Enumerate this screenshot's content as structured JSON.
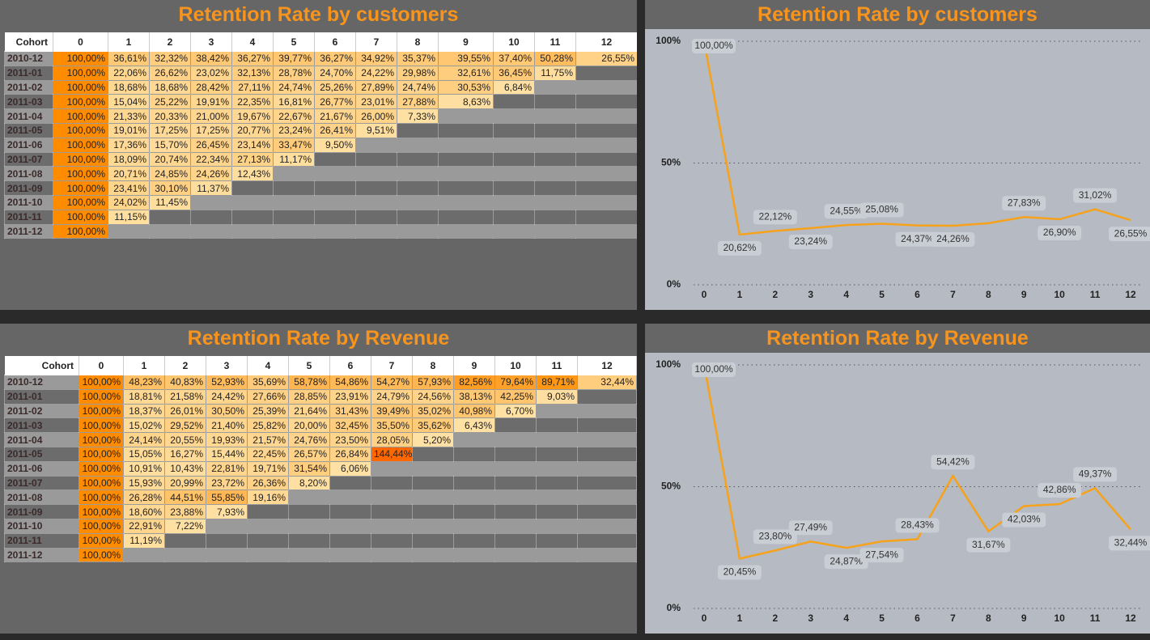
{
  "tables": [
    {
      "title": "Retention Rate by customers",
      "header": [
        "Cohort",
        "0",
        "1",
        "2",
        "3",
        "4",
        "5",
        "6",
        "7",
        "8",
        "9",
        "10",
        "11",
        "12"
      ],
      "rows": [
        [
          "2010-12",
          "100,00%",
          "36,61%",
          "32,32%",
          "38,42%",
          "36,27%",
          "39,77%",
          "36,27%",
          "34,92%",
          "35,37%",
          "39,55%",
          "37,40%",
          "50,28%",
          "26,55%"
        ],
        [
          "2011-01",
          "100,00%",
          "22,06%",
          "26,62%",
          "23,02%",
          "32,13%",
          "28,78%",
          "24,70%",
          "24,22%",
          "29,98%",
          "32,61%",
          "36,45%",
          "11,75%"
        ],
        [
          "2011-02",
          "100,00%",
          "18,68%",
          "18,68%",
          "28,42%",
          "27,11%",
          "24,74%",
          "25,26%",
          "27,89%",
          "24,74%",
          "30,53%",
          "6,84%"
        ],
        [
          "2011-03",
          "100,00%",
          "15,04%",
          "25,22%",
          "19,91%",
          "22,35%",
          "16,81%",
          "26,77%",
          "23,01%",
          "27,88%",
          "8,63%"
        ],
        [
          "2011-04",
          "100,00%",
          "21,33%",
          "20,33%",
          "21,00%",
          "19,67%",
          "22,67%",
          "21,67%",
          "26,00%",
          "7,33%"
        ],
        [
          "2011-05",
          "100,00%",
          "19,01%",
          "17,25%",
          "17,25%",
          "20,77%",
          "23,24%",
          "26,41%",
          "9,51%"
        ],
        [
          "2011-06",
          "100,00%",
          "17,36%",
          "15,70%",
          "26,45%",
          "23,14%",
          "33,47%",
          "9,50%"
        ],
        [
          "2011-07",
          "100,00%",
          "18,09%",
          "20,74%",
          "22,34%",
          "27,13%",
          "11,17%"
        ],
        [
          "2011-08",
          "100,00%",
          "20,71%",
          "24,85%",
          "24,26%",
          "12,43%"
        ],
        [
          "2011-09",
          "100,00%",
          "23,41%",
          "30,10%",
          "11,37%"
        ],
        [
          "2011-10",
          "100,00%",
          "24,02%",
          "11,45%"
        ],
        [
          "2011-11",
          "100,00%",
          "11,15%"
        ],
        [
          "2011-12",
          "100,00%"
        ]
      ]
    },
    {
      "title": "Retention Rate by Revenue",
      "header": [
        "Cohort",
        "0",
        "1",
        "2",
        "3",
        "4",
        "5",
        "6",
        "7",
        "8",
        "9",
        "10",
        "11",
        "12"
      ],
      "rows": [
        [
          "2010-12",
          "100,00%",
          "48,23%",
          "40,83%",
          "52,93%",
          "35,69%",
          "58,78%",
          "54,86%",
          "54,27%",
          "57,93%",
          "82,56%",
          "79,64%",
          "89,71%",
          "32,44%"
        ],
        [
          "2011-01",
          "100,00%",
          "18,81%",
          "21,58%",
          "24,42%",
          "27,66%",
          "28,85%",
          "23,91%",
          "24,79%",
          "24,56%",
          "38,13%",
          "42,25%",
          "9,03%"
        ],
        [
          "2011-02",
          "100,00%",
          "18,37%",
          "26,01%",
          "30,50%",
          "25,39%",
          "21,64%",
          "31,43%",
          "39,49%",
          "35,02%",
          "40,98%",
          "6,70%"
        ],
        [
          "2011-03",
          "100,00%",
          "15,02%",
          "29,52%",
          "21,40%",
          "25,82%",
          "20,00%",
          "32,45%",
          "35,50%",
          "35,62%",
          "6,43%"
        ],
        [
          "2011-04",
          "100,00%",
          "24,14%",
          "20,55%",
          "19,93%",
          "21,57%",
          "24,76%",
          "23,50%",
          "28,05%",
          "5,20%"
        ],
        [
          "2011-05",
          "100,00%",
          "15,05%",
          "16,27%",
          "15,44%",
          "22,45%",
          "26,57%",
          "26,84%",
          "144,44%"
        ],
        [
          "2011-06",
          "100,00%",
          "10,91%",
          "10,43%",
          "22,81%",
          "19,71%",
          "31,54%",
          "6,06%"
        ],
        [
          "2011-07",
          "100,00%",
          "15,93%",
          "20,99%",
          "23,72%",
          "26,36%",
          "8,20%"
        ],
        [
          "2011-08",
          "100,00%",
          "26,28%",
          "44,51%",
          "55,85%",
          "19,16%"
        ],
        [
          "2011-09",
          "100,00%",
          "18,60%",
          "23,88%",
          "7,93%"
        ],
        [
          "2011-10",
          "100,00%",
          "22,91%",
          "7,22%"
        ],
        [
          "2011-11",
          "100,00%",
          "11,19%"
        ],
        [
          "2011-12",
          "100,00%"
        ]
      ]
    }
  ],
  "chart_data": [
    {
      "type": "line",
      "title": "Retention Rate by customers",
      "color": "#f7a21b",
      "x": [
        0,
        1,
        2,
        3,
        4,
        5,
        6,
        7,
        8,
        9,
        10,
        11,
        12
      ],
      "values": [
        100,
        20.62,
        22.12,
        23.24,
        24.55,
        25.08,
        24.37,
        24.26,
        25.3,
        27.83,
        26.9,
        31.02,
        26.55
      ],
      "value_labels": [
        "100,00%",
        "20,62%",
        "22,12%",
        "23,24%",
        "24,55%",
        "25,08%",
        "24,37%",
        "24,26%",
        null,
        "27,83%",
        "26,90%",
        "31,02%",
        "26,55%"
      ],
      "xlim": [
        0,
        12
      ],
      "xticks": [
        0,
        1,
        2,
        3,
        4,
        5,
        6,
        7,
        8,
        9,
        10,
        11,
        12
      ],
      "ylim": [
        0,
        100
      ],
      "yticks": [
        {
          "value": 0,
          "label": "0%"
        },
        {
          "value": 50,
          "label": "50%"
        },
        {
          "value": 100,
          "label": "100%"
        }
      ],
      "grid": true
    },
    {
      "type": "line",
      "title": "Retention Rate by Revenue",
      "color": "#f7a21b",
      "x": [
        0,
        1,
        2,
        3,
        4,
        5,
        6,
        7,
        8,
        9,
        10,
        11,
        12
      ],
      "values": [
        100,
        20.45,
        23.8,
        27.49,
        24.87,
        27.54,
        28.43,
        54.42,
        31.67,
        42.03,
        42.86,
        49.37,
        32.44
      ],
      "value_labels": [
        "100,00%",
        "20,45%",
        "23,80%",
        "27,49%",
        "24,87%",
        "27,54%",
        "28,43%",
        "54,42%",
        "31,67%",
        "42,03%",
        "42,86%",
        "49,37%",
        "32,44%"
      ],
      "xlim": [
        0,
        12
      ],
      "xticks": [
        0,
        1,
        2,
        3,
        4,
        5,
        6,
        7,
        8,
        9,
        10,
        11,
        12
      ],
      "ylim": [
        0,
        100
      ],
      "yticks": [
        {
          "value": 0,
          "label": "0%"
        },
        {
          "value": 50,
          "label": "50%"
        },
        {
          "value": 100,
          "label": "100%"
        }
      ],
      "grid": true
    }
  ]
}
